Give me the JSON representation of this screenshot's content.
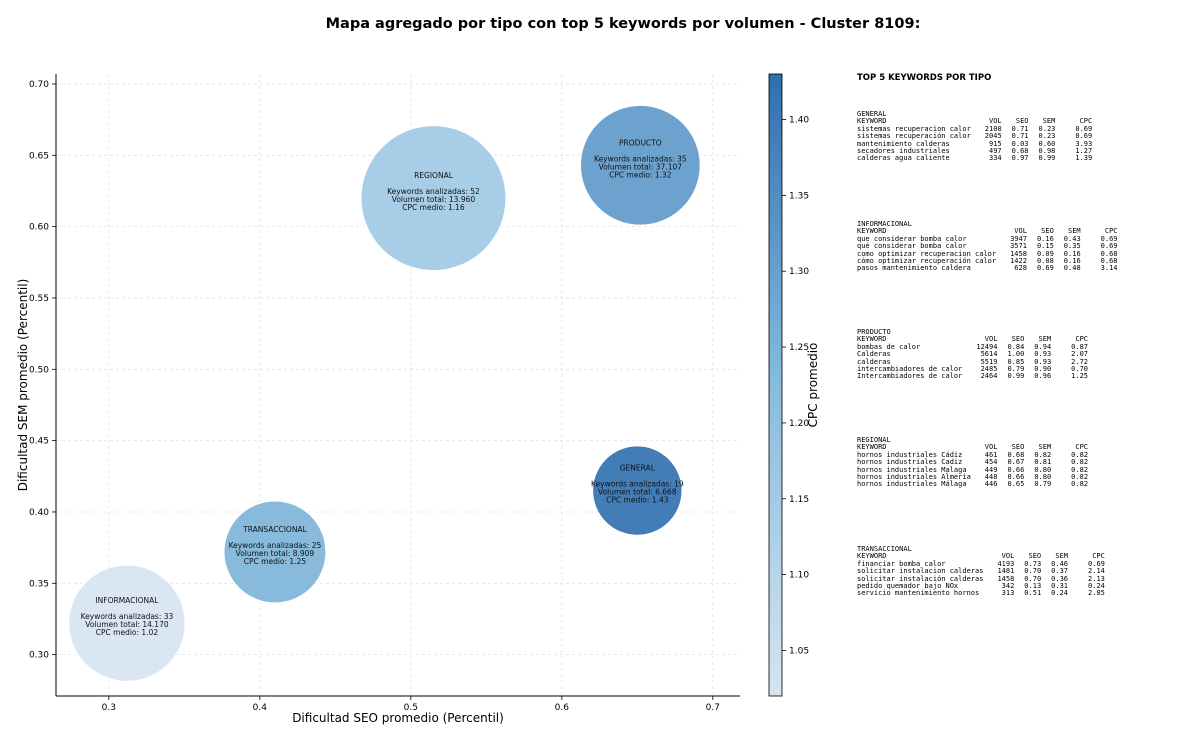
{
  "chart_data": {
    "type": "scatter",
    "title": "Mapa agregado por tipo con top 5 keywords por volumen - Cluster 8109:",
    "xlabel": "Dificultad SEO promedio (Percentil)",
    "ylabel": "Dificultad SEM promedio (Percentil)",
    "xlim": [
      0.265,
      0.718
    ],
    "ylim": [
      0.271,
      0.707
    ],
    "xticks": [
      "0.3",
      "0.4",
      "0.5",
      "0.6",
      "0.7"
    ],
    "yticks": [
      "0.30",
      "0.35",
      "0.40",
      "0.45",
      "0.50",
      "0.55",
      "0.60",
      "0.65",
      "0.70"
    ],
    "grid": true,
    "colorbar": {
      "label": "CPC promedio",
      "min": 1.02,
      "max": 1.43,
      "ticks": [
        "1.05",
        "1.10",
        "1.15",
        "1.20",
        "1.25",
        "1.30",
        "1.35",
        "1.40"
      ],
      "color_low": "#d6e4f2",
      "color_high": "#2e6fb0"
    },
    "points": [
      {
        "label": "INFORMACIONAL",
        "x": 0.312,
        "y": 0.322,
        "keywords_label": "Keywords analizadas: 33",
        "volume_label": "Volumen total: 14.170",
        "cpc_label": "CPC medio: 1.02",
        "keywords": 33,
        "volume": 14170,
        "cpc": 1.02
      },
      {
        "label": "TRANSACCIONAL",
        "x": 0.41,
        "y": 0.372,
        "keywords_label": "Keywords analizadas: 25",
        "volume_label": "Volumen total: 8.909",
        "cpc_label": "CPC medio: 1.25",
        "keywords": 25,
        "volume": 8909,
        "cpc": 1.25
      },
      {
        "label": "REGIONAL",
        "x": 0.515,
        "y": 0.62,
        "keywords_label": "Keywords analizadas: 52",
        "volume_label": "Volumen total: 13.960",
        "cpc_label": "CPC medio: 1.16",
        "keywords": 52,
        "volume": 13960,
        "cpc": 1.16
      },
      {
        "label": "PRODUCTO",
        "x": 0.652,
        "y": 0.643,
        "keywords_label": "Keywords analizadas: 35",
        "volume_label": "Volumen total: 37.107",
        "cpc_label": "CPC medio: 1.32",
        "keywords": 35,
        "volume": 37107,
        "cpc": 1.32
      },
      {
        "label": "GENERAL",
        "x": 0.65,
        "y": 0.415,
        "keywords_label": "Keywords analizadas: 19",
        "volume_label": "Volumen total: 6.668",
        "cpc_label": "CPC medio: 1.43",
        "keywords": 19,
        "volume": 6668,
        "cpc": 1.43
      }
    ]
  },
  "keyword_panel": {
    "title": "TOP 5 KEYWORDS POR TIPO",
    "columns": [
      "KEYWORD",
      "VOL",
      "SEO",
      "SEM",
      "CPC"
    ],
    "groups": [
      {
        "name": "GENERAL",
        "rows": [
          [
            "sistemas recuperacion calor",
            "2100",
            "0.71",
            "0.23",
            "0.69"
          ],
          [
            "sistemas recuperación calor",
            "2045",
            "0.71",
            "0.23",
            "0.69"
          ],
          [
            "mantenimiento calderas",
            "915",
            "0.03",
            "0.60",
            "3.93"
          ],
          [
            "secadores industriales",
            "497",
            "0.68",
            "0.98",
            "1.27"
          ],
          [
            "calderas agua caliente",
            "334",
            "0.97",
            "0.99",
            "1.39"
          ]
        ]
      },
      {
        "name": "INFORMACIONAL",
        "rows": [
          [
            "que considerar bomba calor",
            "3947",
            "0.16",
            "0.43",
            "0.69"
          ],
          [
            "qué considerar bomba calor",
            "3571",
            "0.15",
            "0.35",
            "0.69"
          ],
          [
            "como optimizar recuperacion calor",
            "1458",
            "0.09",
            "0.16",
            "0.68"
          ],
          [
            "cómo optimizar recuperación calor",
            "1422",
            "0.08",
            "0.16",
            "0.68"
          ],
          [
            "pasos mantenimiento caldera",
            "628",
            "0.69",
            "0.48",
            "3.14"
          ]
        ]
      },
      {
        "name": "PRODUCTO",
        "rows": [
          [
            "bombas de calor",
            "12494",
            "0.84",
            "0.94",
            "0.87"
          ],
          [
            "Calderas",
            "5614",
            "1.00",
            "0.93",
            "2.07"
          ],
          [
            "calderas",
            "5519",
            "0.85",
            "0.93",
            "2.72"
          ],
          [
            "intercambiadores de calor",
            "2485",
            "0.79",
            "0.90",
            "0.70"
          ],
          [
            "Intercambiadores de calor",
            "2464",
            "0.99",
            "0.96",
            "1.25"
          ]
        ]
      },
      {
        "name": "REGIONAL",
        "rows": [
          [
            "hornos industriales Cádiz",
            "461",
            "0.68",
            "0.82",
            "0.82"
          ],
          [
            "hornos industriales Cadiz",
            "454",
            "0.67",
            "0.81",
            "0.82"
          ],
          [
            "hornos industriales Malaga",
            "449",
            "0.66",
            "0.80",
            "0.82"
          ],
          [
            "hornos industriales Almeria",
            "448",
            "0.66",
            "0.80",
            "0.82"
          ],
          [
            "hornos industriales Málaga",
            "446",
            "0.65",
            "0.79",
            "0.82"
          ]
        ]
      },
      {
        "name": "TRANSACCIONAL",
        "rows": [
          [
            "financiar bomba calor",
            "4193",
            "0.73",
            "0.46",
            "0.69"
          ],
          [
            "solicitar instalacion calderas",
            "1481",
            "0.70",
            "0.37",
            "2.14"
          ],
          [
            "solicitar instalación calderas",
            "1458",
            "0.70",
            "0.36",
            "2.13"
          ],
          [
            "pedido quemador bajo NOx",
            "342",
            "0.13",
            "0.31",
            "0.24"
          ],
          [
            "servicio mantenimiento hornos",
            "313",
            "0.51",
            "0.24",
            "2.85"
          ]
        ]
      }
    ]
  }
}
